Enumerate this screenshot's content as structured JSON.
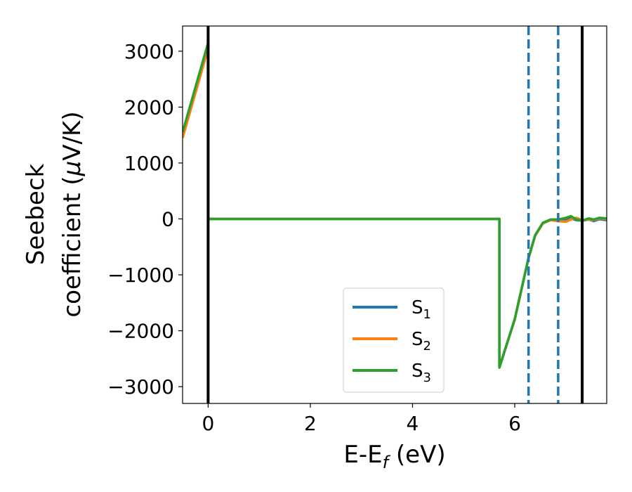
{
  "chart_data": {
    "type": "line",
    "title": "",
    "xlabel": "E-E",
    "xlabel_sub": "f",
    "xlabel_unit": " (eV)",
    "ylabel_line1": "Seebeck",
    "ylabel_line2": "coefficient  (",
    "ylabel_mu": "μ",
    "ylabel_unit": "V/K)",
    "xlim": [
      -0.5,
      7.8
    ],
    "ylim": [
      -3300,
      3450
    ],
    "xticks": [
      0,
      2,
      4,
      6
    ],
    "xtick_labels": [
      "0",
      "2",
      "4",
      "6"
    ],
    "yticks": [
      3000,
      2000,
      1000,
      0,
      -1000,
      -2000,
      -3000
    ],
    "ytick_labels": [
      "3000",
      "2000",
      "1000",
      "0",
      "−1000",
      "−2000",
      "−3000"
    ],
    "grid": false,
    "legend_position": "lower center",
    "vertical_lines": [
      {
        "x": 0.0,
        "style": "solid",
        "color": "#000000"
      },
      {
        "x": 6.27,
        "style": "dashed",
        "color": "#1f77b4"
      },
      {
        "x": 6.85,
        "style": "dashed",
        "color": "#1f77b4"
      },
      {
        "x": 7.32,
        "style": "solid",
        "color": "#000000"
      }
    ],
    "series": [
      {
        "name": "S",
        "sub": "1",
        "color": "#1f77b4",
        "x": [
          -0.5,
          0.0,
          0.0,
          5.7,
          5.7,
          6.0,
          6.27,
          6.4,
          6.55,
          6.7,
          6.85,
          7.0,
          7.1,
          7.2,
          7.32,
          7.45,
          7.55,
          7.65,
          7.8
        ],
        "y": [
          1450,
          3100,
          0,
          0,
          -2650,
          -1800,
          -700,
          -300,
          -80,
          -20,
          -30,
          0,
          10,
          -20,
          -30,
          -10,
          -40,
          -5,
          -20
        ]
      },
      {
        "name": "S",
        "sub": "2",
        "color": "#ff7f0e",
        "x": [
          -0.5,
          0.0,
          0.0,
          5.7,
          5.7,
          6.0,
          6.27,
          6.4,
          6.55,
          6.7,
          6.85,
          7.0,
          7.1,
          7.2,
          7.32,
          7.45,
          7.55,
          7.65,
          7.8
        ],
        "y": [
          1450,
          3050,
          0,
          0,
          -2650,
          -1800,
          -700,
          -300,
          -80,
          -20,
          -40,
          -50,
          -10,
          20,
          -20,
          -10,
          -20,
          10,
          0
        ]
      },
      {
        "name": "S",
        "sub": "3",
        "color": "#2ca02c",
        "x": [
          -0.5,
          0.0,
          0.0,
          5.7,
          5.7,
          6.0,
          6.27,
          6.4,
          6.55,
          6.7,
          6.85,
          7.0,
          7.1,
          7.2,
          7.32,
          7.45,
          7.55,
          7.65,
          7.8
        ],
        "y": [
          1550,
          3150,
          0,
          0,
          -2660,
          -1790,
          -690,
          -290,
          -70,
          -10,
          -10,
          20,
          50,
          -10,
          -30,
          10,
          -10,
          20,
          10
        ]
      }
    ]
  }
}
